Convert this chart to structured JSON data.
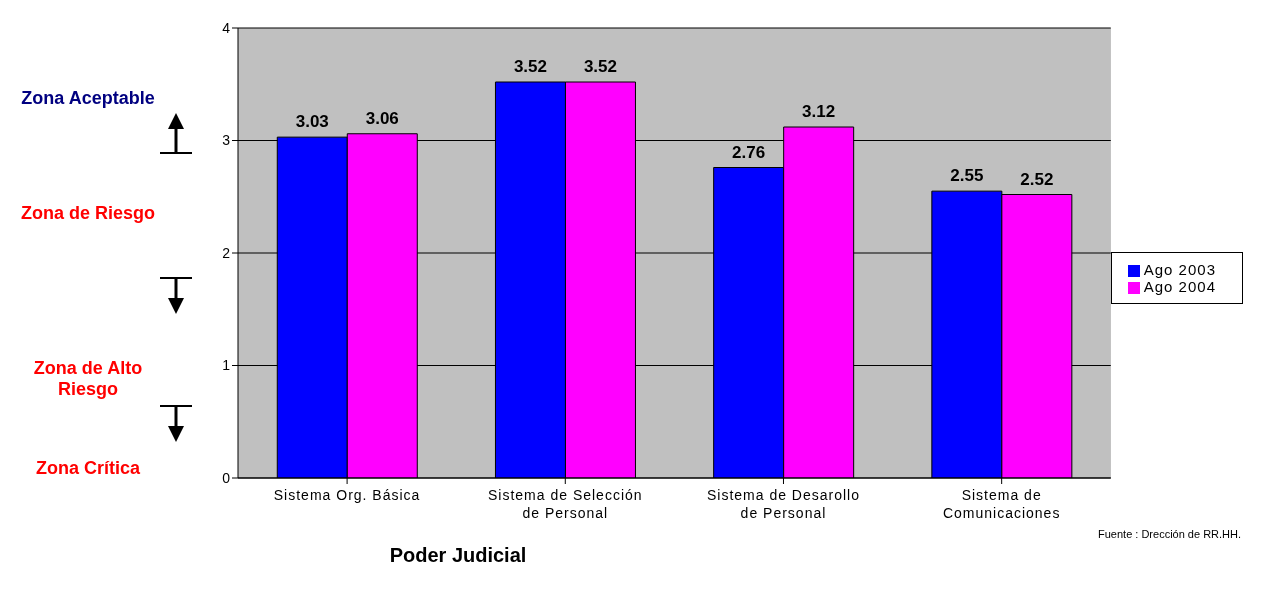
{
  "chart_data": {
    "type": "bar",
    "title": "Poder Judicial",
    "categories": [
      "Sistema Org. Básica",
      "Sistema de Selección de Personal",
      "Sistema de Desarollo de Personal",
      "Sistema de Comunicaciones"
    ],
    "series": [
      {
        "name": "Ago 2003",
        "color": "#0000ff",
        "values": [
          3.03,
          3.52,
          2.76,
          2.55
        ]
      },
      {
        "name": "Ago 2004",
        "color": "#ff00ff",
        "values": [
          3.06,
          3.52,
          3.12,
          2.52
        ]
      }
    ],
    "ylim": [
      0,
      4
    ],
    "yticks": [
      0,
      1,
      2,
      3,
      4
    ],
    "grid": "y",
    "legend": "right",
    "data_labels": true,
    "annotations": [
      "Zona Aceptable",
      "Zona de Riesgo",
      "Zona de Alto Riesgo",
      "Zona Crítica",
      "Fuente : Drección de RR.HH."
    ]
  }
}
